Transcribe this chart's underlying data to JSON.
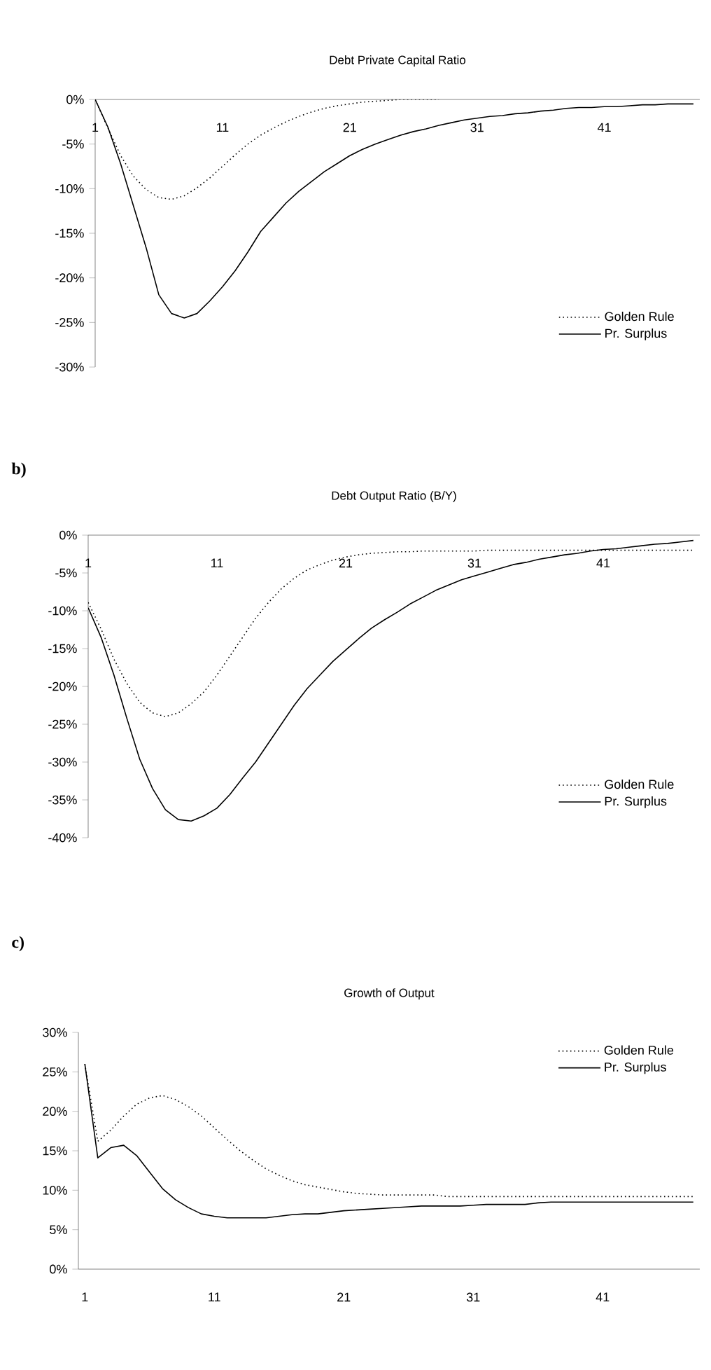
{
  "chart_data": [
    {
      "type": "line",
      "title": "Debt Private Capital Ratio",
      "x": [
        1,
        2,
        3,
        4,
        5,
        6,
        7,
        8,
        9,
        10,
        11,
        12,
        13,
        14,
        15,
        16,
        17,
        18,
        19,
        20,
        21,
        22,
        23,
        24,
        25,
        26,
        27,
        28,
        29,
        30,
        31,
        32,
        33,
        34,
        35,
        36,
        37,
        38,
        39,
        40,
        41,
        42,
        43,
        44,
        45,
        46,
        47,
        48
      ],
      "xlim": [
        1,
        48.5
      ],
      "xticks": [
        1,
        11,
        21,
        31,
        41
      ],
      "ylim": [
        -30,
        0
      ],
      "yticks": [
        {
          "value": 0,
          "label": "0%"
        },
        {
          "value": -5,
          "label": "-5%"
        },
        {
          "value": -10,
          "label": "-10%"
        },
        {
          "value": -15,
          "label": "-15%"
        },
        {
          "value": -20,
          "label": "-20%"
        },
        {
          "value": -25,
          "label": "-25%"
        },
        {
          "value": -30,
          "label": "-30%"
        }
      ],
      "legend": "bottom right",
      "marker": "none",
      "grid": false,
      "series": [
        {
          "name": "Golden Rule",
          "color": "#000000",
          "line_style": "dotted",
          "values": [
            0,
            -3.2,
            -6.3,
            -8.6,
            -10.1,
            -11,
            -11.2,
            -10.8,
            -9.9,
            -8.8,
            -7.5,
            -6.2,
            -5.0,
            -4.0,
            -3.2,
            -2.5,
            -1.9,
            -1.4,
            -1.0,
            -0.7,
            -0.5,
            -0.3,
            -0.2,
            -0.1,
            0,
            0,
            0,
            0,
            null,
            null,
            null,
            null,
            null,
            null,
            null,
            null,
            null,
            null,
            null,
            null,
            null,
            null,
            null,
            null,
            null,
            null,
            null,
            null
          ]
        },
        {
          "name": "Pr. Surplus",
          "color": "#000000",
          "line_style": "solid",
          "values": [
            0,
            -3.1,
            -7.2,
            -11.9,
            -16.6,
            -21.9,
            -24,
            -24.5,
            -24,
            -22.6,
            -21,
            -19.2,
            -17.1,
            -14.8,
            -13.2,
            -11.6,
            -10.3,
            -9.2,
            -8.1,
            -7.2,
            -6.3,
            -5.6,
            -5,
            -4.5,
            -4.0,
            -3.6,
            -3.3,
            -2.9,
            -2.6,
            -2.3,
            -2.1,
            -1.9,
            -1.8,
            -1.6,
            -1.5,
            -1.3,
            -1.2,
            -1.0,
            -0.9,
            -0.9,
            -0.8,
            -0.8,
            -0.7,
            -0.6,
            -0.6,
            -0.5,
            -0.5,
            -0.5
          ]
        }
      ]
    },
    {
      "type": "line",
      "title": "Debt Output Ratio (B/Y)",
      "annotations": [
        "b)"
      ],
      "x": [
        1,
        2,
        3,
        4,
        5,
        6,
        7,
        8,
        9,
        10,
        11,
        12,
        13,
        14,
        15,
        16,
        17,
        18,
        19,
        20,
        21,
        22,
        23,
        24,
        25,
        26,
        27,
        28,
        29,
        30,
        31,
        32,
        33,
        34,
        35,
        36,
        37,
        38,
        39,
        40,
        41,
        42,
        43,
        44,
        45,
        46,
        47,
        48
      ],
      "xlim": [
        1,
        48.5
      ],
      "xticks": [
        1,
        11,
        21,
        31,
        41
      ],
      "ylim": [
        -40,
        0
      ],
      "yticks": [
        {
          "value": 0,
          "label": "0%"
        },
        {
          "value": -5,
          "label": "-5%"
        },
        {
          "value": -10,
          "label": "-10%"
        },
        {
          "value": -15,
          "label": "-15%"
        },
        {
          "value": -20,
          "label": "-20%"
        },
        {
          "value": -25,
          "label": "-25%"
        },
        {
          "value": -30,
          "label": "-30%"
        },
        {
          "value": -35,
          "label": "-35%"
        },
        {
          "value": -40,
          "label": "-40%"
        }
      ],
      "legend": "bottom right",
      "marker": "none",
      "grid": false,
      "series": [
        {
          "name": "Golden Rule",
          "color": "#000000",
          "line_style": "dotted",
          "values": [
            -8.9,
            -12.4,
            -16.4,
            -19.6,
            -22.1,
            -23.5,
            -24,
            -23.5,
            -22.3,
            -20.7,
            -18.5,
            -16,
            -13.5,
            -11,
            -8.9,
            -7.1,
            -5.7,
            -4.6,
            -3.9,
            -3.3,
            -2.9,
            -2.6,
            -2.4,
            -2.3,
            -2.2,
            -2.2,
            -2.1,
            -2.1,
            -2.1,
            -2.1,
            -2.1,
            -2.0,
            -2.0,
            -2.0,
            -2.0,
            -2.0,
            -2.0,
            -2.0,
            -2.0,
            -2.0,
            -2.0,
            -2.0,
            -2.0,
            -2.0,
            -2.0,
            -2.0,
            -2.0,
            -2.0
          ]
        },
        {
          "name": "Pr. Surplus",
          "color": "#000000",
          "line_style": "solid",
          "values": [
            -9.6,
            -13.5,
            -18.5,
            -24.2,
            -29.6,
            -33.5,
            -36.3,
            -37.6,
            -37.8,
            -37.1,
            -36.1,
            -34.3,
            -32.1,
            -30,
            -27.5,
            -25,
            -22.5,
            -20.3,
            -18.5,
            -16.7,
            -15.2,
            -13.7,
            -12.3,
            -11.2,
            -10.2,
            -9.1,
            -8.2,
            -7.3,
            -6.6,
            -5.9,
            -5.4,
            -4.9,
            -4.4,
            -3.9,
            -3.6,
            -3.2,
            -2.9,
            -2.6,
            -2.4,
            -2.1,
            -1.9,
            -1.8,
            -1.6,
            -1.4,
            -1.2,
            -1.1,
            -0.9,
            -0.7
          ]
        }
      ]
    },
    {
      "type": "line",
      "title": "Growth of Output",
      "annotations": [
        "c)"
      ],
      "x": [
        1,
        2,
        3,
        4,
        5,
        6,
        7,
        8,
        9,
        10,
        11,
        12,
        13,
        14,
        15,
        16,
        17,
        18,
        19,
        20,
        21,
        22,
        23,
        24,
        25,
        26,
        27,
        28,
        29,
        30,
        31,
        32,
        33,
        34,
        35,
        36,
        37,
        38,
        39,
        40,
        41,
        42,
        43,
        44,
        45,
        46,
        47,
        48
      ],
      "xlim": [
        0.5,
        48.5
      ],
      "xticks": [
        1,
        11,
        21,
        31,
        41
      ],
      "ylim": [
        0,
        30
      ],
      "yticks": [
        {
          "value": 0,
          "label": "0%"
        },
        {
          "value": 5,
          "label": "5%"
        },
        {
          "value": 10,
          "label": "10%"
        },
        {
          "value": 15,
          "label": "15%"
        },
        {
          "value": 20,
          "label": "20%"
        },
        {
          "value": 25,
          "label": "25%"
        },
        {
          "value": 30,
          "label": "30%"
        }
      ],
      "legend": "top right",
      "marker": "none",
      "grid": false,
      "series": [
        {
          "name": "Golden Rule",
          "color": "#000000",
          "line_style": "dotted",
          "values": [
            26,
            16.2,
            17.6,
            19.4,
            20.9,
            21.7,
            22,
            21.5,
            20.6,
            19.4,
            17.9,
            16.4,
            15,
            13.8,
            12.7,
            11.9,
            11.2,
            10.7,
            10.4,
            10.1,
            9.8,
            9.6,
            9.5,
            9.4,
            9.4,
            9.4,
            9.4,
            9.4,
            9.2,
            9.2,
            9.2,
            9.2,
            9.2,
            9.2,
            9.2,
            9.2,
            9.2,
            9.2,
            9.2,
            9.2,
            9.2,
            9.2,
            9.2,
            9.2,
            9.2,
            9.2,
            9.2,
            9.2
          ]
        },
        {
          "name": "Pr. Surplus",
          "color": "#000000",
          "line_style": "solid",
          "values": [
            26,
            14.1,
            15.4,
            15.7,
            14.4,
            12.3,
            10.2,
            8.8,
            7.8,
            7.0,
            6.7,
            6.5,
            6.5,
            6.5,
            6.5,
            6.7,
            6.9,
            7.0,
            7.0,
            7.2,
            7.4,
            7.5,
            7.6,
            7.7,
            7.8,
            7.9,
            8.0,
            8.0,
            8.0,
            8.0,
            8.1,
            8.2,
            8.2,
            8.2,
            8.2,
            8.4,
            8.5,
            8.5,
            8.5,
            8.5,
            8.5,
            8.5,
            8.5,
            8.5,
            8.5,
            8.5,
            8.5,
            8.5
          ]
        }
      ]
    }
  ]
}
